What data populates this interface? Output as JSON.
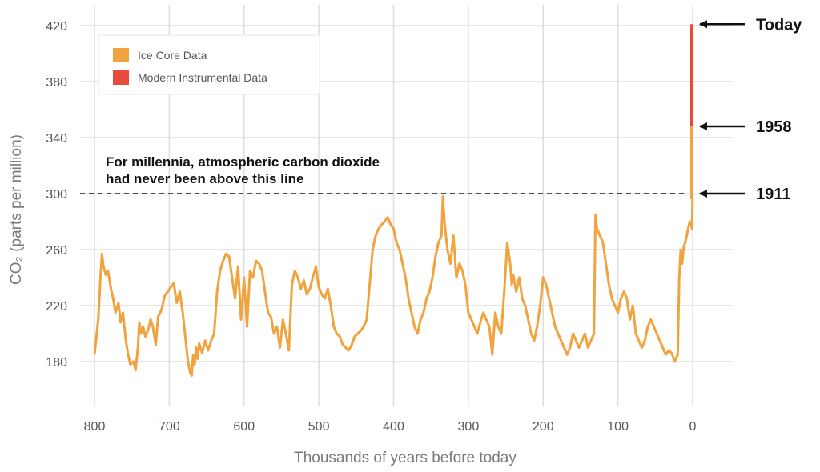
{
  "chart_data": {
    "type": "line",
    "xlabel": "Thousands of years before today",
    "ylabel": "CO₂ (parts per million)",
    "x_reversed": true,
    "xlim": [
      800,
      0
    ],
    "ylim": [
      180,
      420
    ],
    "x_ticks": [
      800,
      700,
      600,
      500,
      400,
      300,
      200,
      100,
      0
    ],
    "y_ticks": [
      180,
      220,
      260,
      300,
      340,
      380,
      420
    ],
    "grid": true,
    "legend": {
      "placement": "top-left",
      "entries": [
        {
          "label": "Ice Core Data",
          "color": "#f0a33e"
        },
        {
          "label": "Modern Instrumental Data",
          "color": "#e84a3c"
        }
      ]
    },
    "series": [
      {
        "name": "Ice Core Data",
        "color": "#f0a33e",
        "x": [
          800,
          795,
          792,
          790,
          788,
          785,
          782,
          778,
          775,
          772,
          768,
          765,
          762,
          758,
          755,
          752,
          748,
          745,
          742,
          740,
          738,
          735,
          732,
          728,
          725,
          722,
          718,
          715,
          712,
          710,
          706,
          702,
          698,
          694,
          690,
          686,
          682,
          678,
          675,
          672,
          670,
          668,
          666,
          664,
          662,
          660,
          656,
          652,
          648,
          644,
          640,
          636,
          632,
          628,
          624,
          620,
          616,
          612,
          608,
          604,
          600,
          596,
          592,
          588,
          584,
          580,
          576,
          572,
          568,
          564,
          560,
          556,
          552,
          548,
          544,
          540,
          536,
          532,
          528,
          524,
          520,
          516,
          512,
          508,
          504,
          500,
          496,
          492,
          488,
          484,
          480,
          476,
          472,
          468,
          464,
          460,
          456,
          452,
          448,
          444,
          440,
          436,
          432,
          428,
          424,
          420,
          416,
          412,
          408,
          404,
          400,
          396,
          392,
          388,
          384,
          380,
          376,
          372,
          368,
          364,
          360,
          356,
          352,
          348,
          344,
          340,
          336,
          334,
          332,
          328,
          324,
          320,
          316,
          312,
          308,
          304,
          300,
          296,
          292,
          288,
          284,
          280,
          276,
          272,
          268,
          264,
          260,
          256,
          252,
          248,
          244,
          242,
          240,
          236,
          232,
          228,
          224,
          220,
          216,
          212,
          208,
          204,
          200,
          196,
          192,
          188,
          184,
          180,
          176,
          172,
          168,
          164,
          160,
          156,
          152,
          148,
          144,
          140,
          136,
          132,
          130,
          128,
          124,
          120,
          116,
          112,
          108,
          104,
          100,
          96,
          92,
          88,
          84,
          80,
          76,
          72,
          68,
          64,
          60,
          56,
          52,
          48,
          44,
          40,
          36,
          32,
          28,
          24,
          20,
          18,
          16,
          14,
          12,
          10,
          8,
          6,
          4,
          2,
          1,
          0.5,
          0.2
        ],
        "values": [
          185,
          210,
          240,
          257,
          248,
          242,
          245,
          232,
          225,
          215,
          222,
          208,
          215,
          195,
          185,
          178,
          180,
          174,
          190,
          208,
          200,
          205,
          198,
          203,
          210,
          205,
          192,
          212,
          215,
          218,
          227,
          230,
          233,
          236,
          222,
          230,
          215,
          195,
          180,
          172,
          170,
          185,
          178,
          190,
          182,
          193,
          186,
          195,
          188,
          195,
          200,
          230,
          245,
          252,
          257,
          255,
          240,
          225,
          248,
          210,
          240,
          205,
          245,
          240,
          252,
          250,
          245,
          230,
          215,
          212,
          200,
          205,
          190,
          210,
          200,
          188,
          235,
          245,
          240,
          232,
          238,
          228,
          232,
          240,
          248,
          233,
          228,
          225,
          232,
          220,
          205,
          200,
          198,
          192,
          190,
          188,
          192,
          198,
          200,
          202,
          205,
          210,
          235,
          260,
          270,
          275,
          278,
          280,
          283,
          278,
          275,
          265,
          260,
          250,
          240,
          225,
          215,
          205,
          200,
          210,
          215,
          225,
          230,
          240,
          255,
          265,
          270,
          298,
          280,
          260,
          250,
          270,
          240,
          250,
          245,
          235,
          215,
          210,
          205,
          200,
          208,
          215,
          210,
          205,
          185,
          215,
          205,
          200,
          230,
          265,
          250,
          235,
          242,
          230,
          240,
          225,
          220,
          210,
          200,
          195,
          205,
          220,
          240,
          235,
          225,
          215,
          205,
          200,
          195,
          190,
          185,
          190,
          200,
          195,
          190,
          195,
          200,
          190,
          195,
          200,
          285,
          275,
          270,
          265,
          250,
          235,
          225,
          220,
          215,
          225,
          230,
          225,
          210,
          220,
          200,
          195,
          190,
          195,
          205,
          210,
          205,
          200,
          195,
          190,
          185,
          188,
          186,
          180,
          185,
          240,
          260,
          250,
          262,
          265,
          270,
          275,
          280,
          278,
          275,
          285,
          296
        ]
      },
      {
        "name": "Modern Instrumental Data",
        "color": "#e84a3c",
        "x": [
          0.068,
          0.05,
          0.04,
          0.03,
          0.02,
          0.01,
          0.0
        ],
        "values": [
          315,
          325,
          337,
          353,
          370,
          390,
          421
        ]
      }
    ],
    "threshold_line": {
      "value": 300,
      "style": "dashed",
      "color": "#333333"
    },
    "annotations": [
      {
        "text_lines": [
          "For millennia, atmospheric carbon dioxide",
          "had never been above this line"
        ],
        "x": 795,
        "y": 314
      },
      {
        "label": "Today",
        "x": 0,
        "y": 421
      },
      {
        "label": "1958",
        "x": 0,
        "y": 348
      },
      {
        "label": "1911",
        "x": 0,
        "y": 300
      }
    ]
  }
}
